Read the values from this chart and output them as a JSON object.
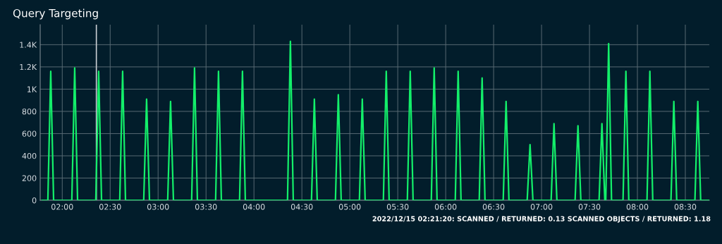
{
  "chart_data": {
    "type": "line",
    "title": "Query Targeting",
    "x": [
      1.79,
      1.85,
      1.88,
      1.91,
      2.1,
      2.13,
      2.16,
      2.35,
      2.38,
      2.41,
      2.6,
      2.63,
      2.66,
      2.85,
      2.88,
      2.91,
      3.1,
      3.13,
      3.16,
      3.35,
      3.38,
      3.41,
      3.6,
      3.63,
      3.66,
      3.85,
      3.88,
      3.91,
      4.35,
      4.38,
      4.41,
      4.6,
      4.63,
      4.66,
      4.85,
      4.88,
      4.91,
      5.1,
      5.13,
      5.16,
      5.35,
      5.38,
      5.41,
      5.6,
      5.63,
      5.66,
      5.85,
      5.88,
      5.91,
      6.1,
      6.13,
      6.16,
      6.35,
      6.38,
      6.41,
      6.6,
      6.63,
      6.66,
      6.85,
      6.88,
      6.91,
      7.1,
      7.13,
      7.16,
      7.35,
      7.38,
      7.41,
      7.6,
      7.63,
      7.66,
      7.67,
      7.7,
      7.73,
      7.85,
      7.88,
      7.91,
      8.1,
      8.13,
      8.16,
      8.35,
      8.38,
      8.41,
      8.6,
      8.63,
      8.66,
      8.75
    ],
    "series": [
      {
        "color": "#13ef6a",
        "values": [
          0,
          0,
          1160,
          0,
          0,
          1190,
          0,
          0,
          1160,
          0,
          0,
          1160,
          0,
          0,
          910,
          0,
          0,
          890,
          0,
          0,
          1190,
          0,
          0,
          1160,
          0,
          0,
          1160,
          0,
          0,
          1430,
          0,
          0,
          910,
          0,
          0,
          950,
          0,
          0,
          910,
          0,
          0,
          1160,
          0,
          0,
          1160,
          0,
          0,
          1190,
          0,
          0,
          1160,
          0,
          0,
          1100,
          0,
          0,
          890,
          0,
          0,
          500,
          0,
          0,
          690,
          0,
          0,
          670,
          0,
          0,
          690,
          0,
          0,
          1410,
          0,
          0,
          1160,
          0,
          0,
          1160,
          0,
          0,
          890,
          0,
          0,
          890,
          0,
          0
        ]
      }
    ],
    "xlim": [
      1.77,
      8.75
    ],
    "xticks": [
      {
        "value": 2,
        "label": "02:00"
      },
      {
        "value": 2.5,
        "label": "02:30"
      },
      {
        "value": 3,
        "label": "03:00"
      },
      {
        "value": 3.5,
        "label": "03:30"
      },
      {
        "value": 4,
        "label": "04:00"
      },
      {
        "value": 4.5,
        "label": "04:30"
      },
      {
        "value": 5,
        "label": "05:00"
      },
      {
        "value": 5.5,
        "label": "05:30"
      },
      {
        "value": 6,
        "label": "06:00"
      },
      {
        "value": 6.5,
        "label": "06:30"
      },
      {
        "value": 7,
        "label": "07:00"
      },
      {
        "value": 7.5,
        "label": "07:30"
      },
      {
        "value": 8,
        "label": "08:00"
      },
      {
        "value": 8.5,
        "label": "08:30"
      }
    ],
    "ylim": [
      0,
      1580
    ],
    "yticks": [
      0,
      200,
      400,
      600,
      800,
      {
        "value": 1000,
        "label": "1K"
      },
      {
        "value": 1200,
        "label": "1.2K"
      },
      {
        "value": 1400,
        "label": "1.4K"
      }
    ],
    "ref_lines": [
      {
        "axis": "x",
        "value": 2.356,
        "color": "#c8cdd2"
      }
    ],
    "annotations": [
      "2022/12/15 02:21:20: SCANNED / RETURNED: 0.13 SCANNED OBJECTS / RETURNED: 1.18"
    ],
    "grid": true,
    "legend": false,
    "marker": "none",
    "line_style": "solid"
  }
}
